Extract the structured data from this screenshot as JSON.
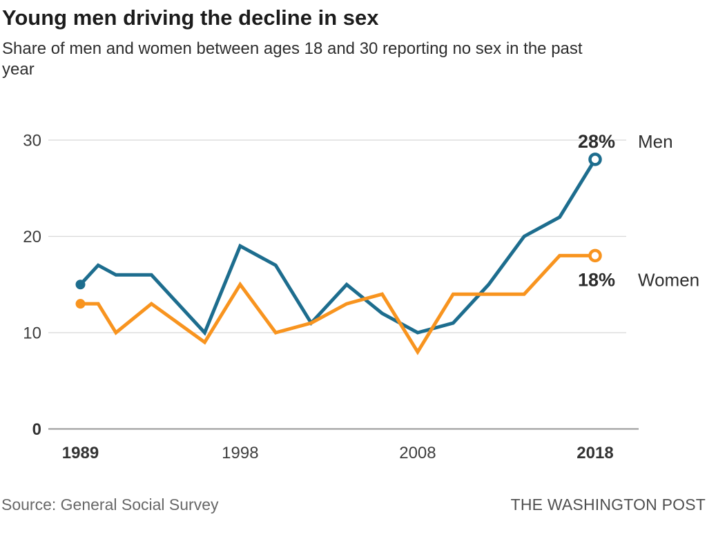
{
  "header": {
    "title": "Young men driving the decline in sex",
    "subtitle": "Share of men and women between ages 18 and 30 reporting no sex in the past year"
  },
  "chart_data": {
    "type": "line",
    "title": "Young men driving the decline in sex",
    "subtitle": "Share of men and women between ages 18 and 30 reporting no sex in the past year",
    "unit": "percent",
    "x": [
      1989,
      1990,
      1991,
      1993,
      1996,
      1998,
      2000,
      2002,
      2004,
      2006,
      2008,
      2010,
      2012,
      2014,
      2016,
      2018
    ],
    "series": [
      {
        "name": "Men",
        "color": "#1d6d8e",
        "values": [
          15,
          17,
          16,
          16,
          10,
          19,
          17,
          11,
          15,
          12,
          10,
          11,
          15,
          20,
          22,
          28
        ],
        "end_label": "28%"
      },
      {
        "name": "Women",
        "color": "#f8941f",
        "values": [
          13,
          13,
          10,
          13,
          9,
          15,
          10,
          11,
          13,
          14,
          8,
          14,
          14,
          14,
          18,
          18
        ],
        "end_label": "18%"
      }
    ],
    "xticks": [
      1989,
      1998,
      2008,
      2018
    ],
    "yticks": [
      0,
      10,
      20,
      30
    ],
    "ylim": [
      0,
      30
    ],
    "xlim": [
      1989,
      2018
    ],
    "grid": true,
    "legend_position": "right-end-of-line",
    "marker_start": "filled-dot",
    "marker_end": "open-circle"
  },
  "footer": {
    "source": "Source: General Social Survey",
    "credit": "THE WASHINGTON POST"
  }
}
